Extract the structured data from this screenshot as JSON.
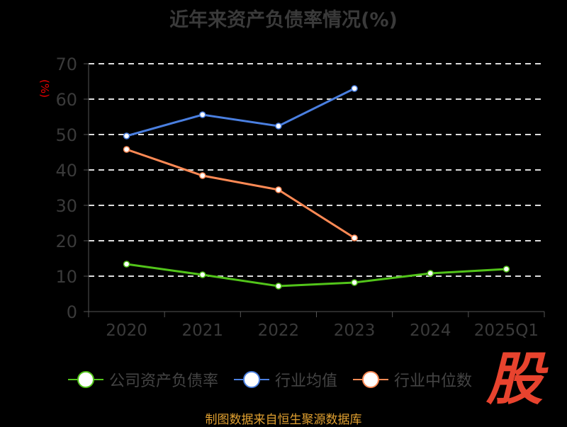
{
  "chart_data": {
    "type": "line",
    "title": "近年来资产负债率情况(%)",
    "ylabel": "(%)",
    "xlabel": "",
    "categories": [
      "2020",
      "2021",
      "2022",
      "2023",
      "2024",
      "2025Q1"
    ],
    "ylim": [
      0,
      70
    ],
    "yticks": [
      "0",
      "10",
      "20",
      "30",
      "40",
      "50",
      "60",
      "70"
    ],
    "grid": true,
    "legend_position": "bottom",
    "series": [
      {
        "name": "公司资产负债率",
        "color": "#52c41a",
        "values": [
          13.4,
          10.4,
          7.2,
          8.2,
          10.8,
          12.0
        ]
      },
      {
        "name": "行业均值",
        "color": "#4a7fe0",
        "values": [
          49.6,
          55.6,
          52.4,
          63.0,
          null,
          null
        ]
      },
      {
        "name": "行业中位数",
        "color": "#ff8a55",
        "values": [
          45.8,
          38.4,
          34.4,
          20.8,
          null,
          null
        ]
      }
    ]
  },
  "logo_text": "股",
  "footer": "制图数据来自恒生聚源数据库"
}
